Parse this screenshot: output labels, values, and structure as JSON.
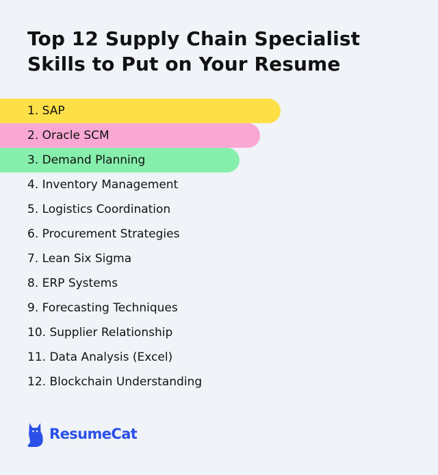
{
  "title": {
    "line1": "Top 12 Supply Chain Specialist",
    "line2": "Skills to Put on Your Resume"
  },
  "skills": [
    {
      "label": "1. SAP",
      "highlight": "#fde047"
    },
    {
      "label": "2. Oracle SCM",
      "highlight": "#f9a8d4"
    },
    {
      "label": "3. Demand Planning",
      "highlight": "#86efac"
    },
    {
      "label": "4. Inventory Management"
    },
    {
      "label": "5. Logistics Coordination"
    },
    {
      "label": "6. Procurement Strategies"
    },
    {
      "label": "7. Lean Six Sigma"
    },
    {
      "label": "8. ERP Systems"
    },
    {
      "label": "9. Forecasting Techniques"
    },
    {
      "label": "10. Supplier Relationship"
    },
    {
      "label": "11. Data Analysis (Excel)"
    },
    {
      "label": "12. Blockchain Understanding"
    }
  ],
  "brand": {
    "name": "ResumeCat",
    "icon": "cat-icon",
    "color": "#2b50e8"
  }
}
